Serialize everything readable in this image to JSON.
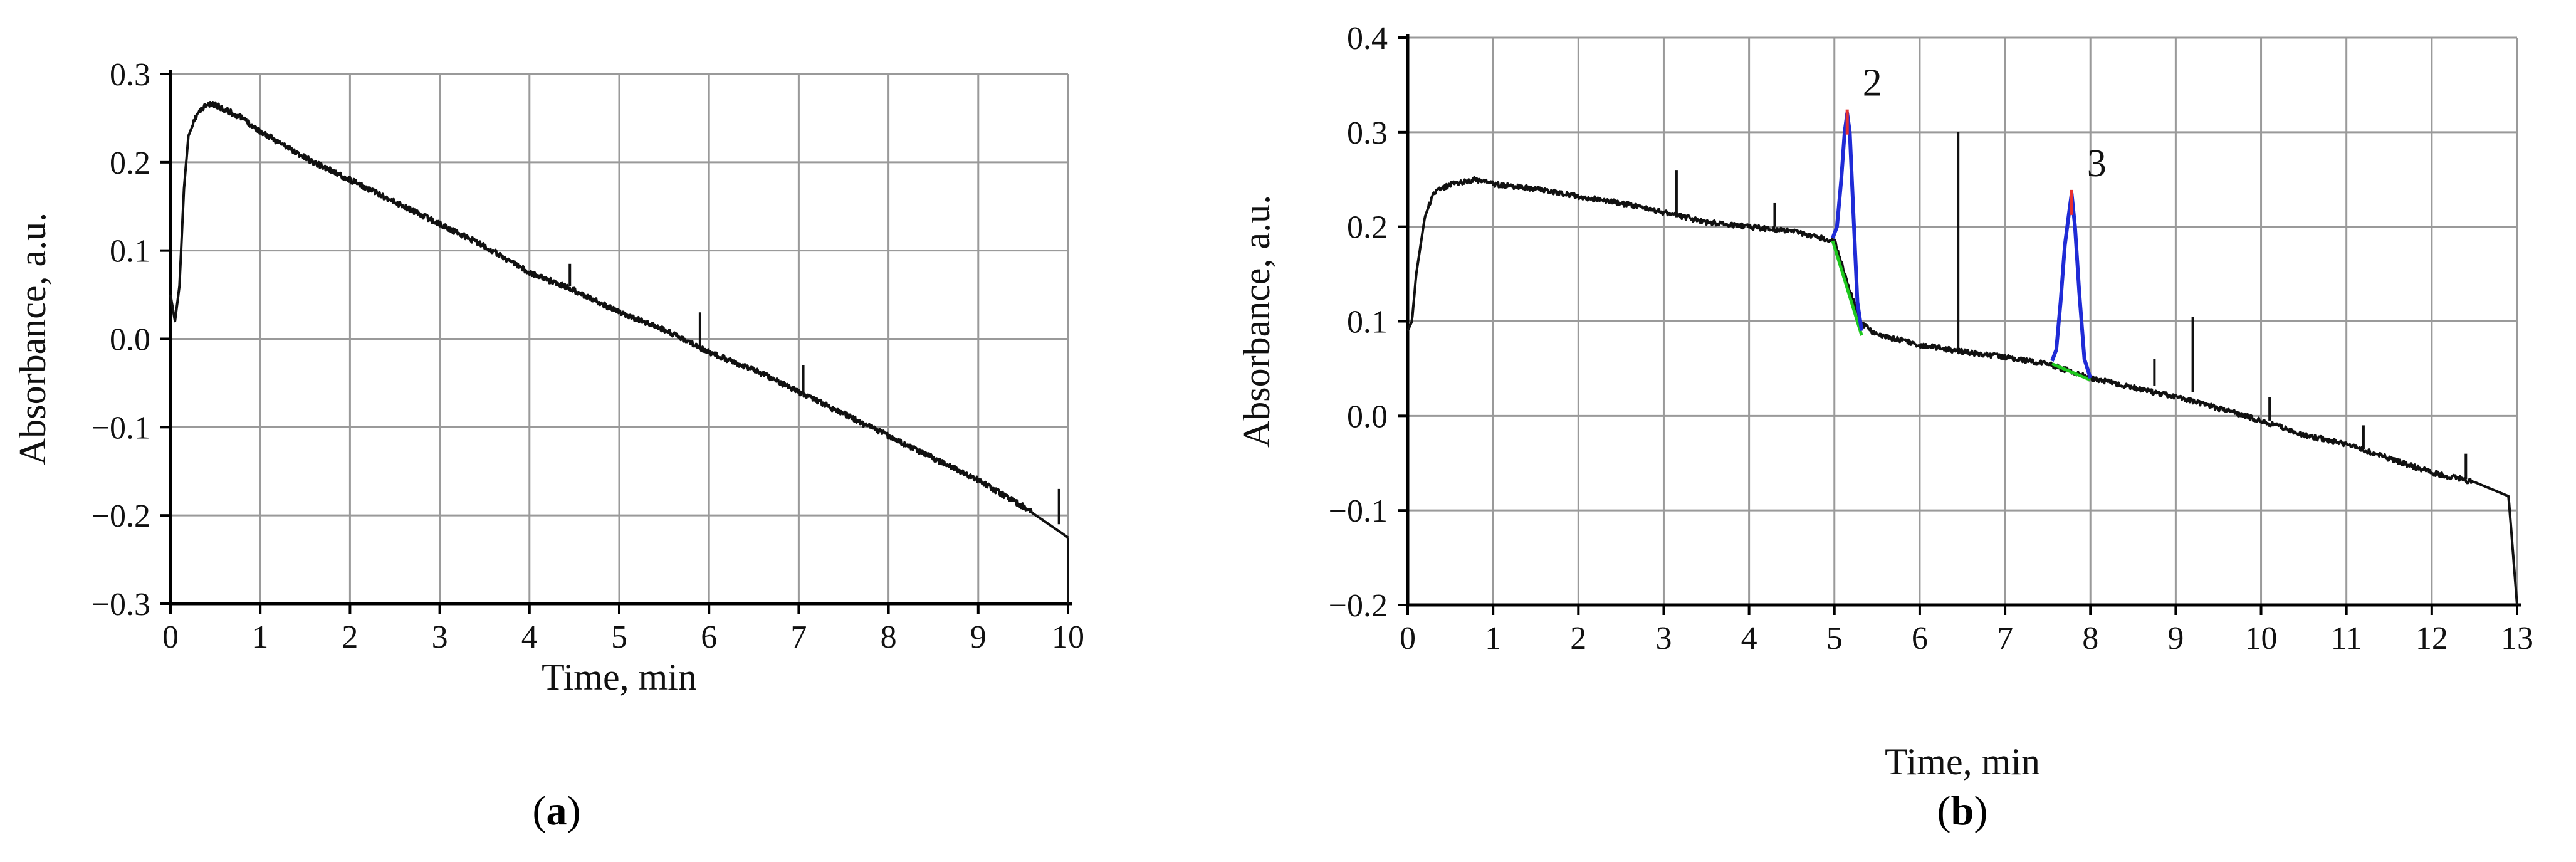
{
  "chart_data": [
    {
      "id": "a",
      "type": "line",
      "panel_label": "a",
      "xlabel": "Time, min",
      "ylabel": "Absorbance, a.u.",
      "xlim": [
        0,
        10
      ],
      "ylim": [
        -0.3,
        0.3
      ],
      "x_ticks": [
        0,
        1,
        2,
        3,
        4,
        5,
        6,
        7,
        8,
        9,
        10
      ],
      "x_tick_labels": [
        "0",
        "1",
        "2",
        "3",
        "4",
        "5",
        "6",
        "7",
        "8",
        "9",
        "10"
      ],
      "y_ticks": [
        0.3,
        0.2,
        0.1,
        0.0,
        -0.1,
        -0.2,
        -0.3
      ],
      "y_tick_labels": [
        "0.3",
        "0.2",
        "0.1",
        "0.0",
        "−0.1",
        "−0.2",
        "−0.3"
      ],
      "grid": true,
      "colors": {
        "trace": "#111111",
        "grid": "#9a9a9a"
      },
      "series": [
        {
          "color": "#111111",
          "x": [
            0.0,
            0.05,
            0.1,
            0.15,
            0.2,
            0.3,
            0.4,
            0.5,
            0.6,
            0.8,
            1.0,
            1.5,
            2.0,
            2.5,
            3.0,
            3.5,
            4.0,
            4.5,
            5.0,
            5.5,
            6.0,
            6.5,
            7.0,
            7.5,
            8.0,
            8.5,
            9.0,
            9.5,
            10.0
          ],
          "y": [
            0.05,
            0.02,
            0.06,
            0.17,
            0.23,
            0.255,
            0.265,
            0.265,
            0.26,
            0.25,
            0.235,
            0.205,
            0.18,
            0.155,
            0.13,
            0.105,
            0.075,
            0.055,
            0.03,
            0.01,
            -0.015,
            -0.035,
            -0.06,
            -0.085,
            -0.11,
            -0.135,
            -0.16,
            -0.19,
            -0.225
          ]
        }
      ],
      "spikes": [
        {
          "x": 4.45,
          "y_base": 0.06,
          "y_top": 0.085
        },
        {
          "x": 5.9,
          "y_base": -0.01,
          "y_top": 0.03
        },
        {
          "x": 7.05,
          "y_base": -0.06,
          "y_top": -0.03
        },
        {
          "x": 9.9,
          "y_base": -0.21,
          "y_top": -0.17
        },
        {
          "x": 10.0,
          "y_base": -0.225,
          "y_top": -0.3
        }
      ]
    },
    {
      "id": "b",
      "type": "line",
      "panel_label": "b",
      "xlabel": "Time, min",
      "ylabel": "Absorbance, a.u.",
      "xlim": [
        0,
        13
      ],
      "ylim": [
        -0.2,
        0.4
      ],
      "x_ticks": [
        0,
        1,
        2,
        3,
        4,
        5,
        6,
        7,
        8,
        9,
        10,
        11,
        12,
        13
      ],
      "x_tick_labels": [
        "0",
        "1",
        "2",
        "3",
        "4",
        "5",
        "6",
        "7",
        "8",
        "9",
        "10",
        "11",
        "12",
        "13"
      ],
      "y_ticks": [
        0.4,
        0.3,
        0.2,
        0.1,
        0.0,
        -0.1,
        -0.2
      ],
      "y_tick_labels": [
        "0.4",
        "0.3",
        "0.2",
        "0.1",
        "0.0",
        "−0.1",
        "−0.2"
      ],
      "grid": true,
      "colors": {
        "trace": "#111111",
        "grid": "#9a9a9a",
        "peak": "#1f2bd6",
        "baseline": "#1ec81e",
        "apex": "#e83030"
      },
      "series": [
        {
          "color": "#111111",
          "x": [
            0.0,
            0.05,
            0.1,
            0.2,
            0.3,
            0.5,
            0.8,
            1.0,
            1.5,
            2.0,
            2.5,
            3.0,
            3.5,
            4.0,
            4.5,
            5.0,
            5.3,
            5.5,
            5.8,
            6.0,
            6.5,
            7.0,
            7.5,
            8.0,
            8.5,
            9.0,
            9.5,
            10.0,
            10.5,
            11.0,
            11.5,
            12.0,
            12.5,
            12.9,
            13.0
          ],
          "y": [
            0.09,
            0.1,
            0.15,
            0.21,
            0.235,
            0.245,
            0.25,
            0.245,
            0.24,
            0.232,
            0.225,
            0.215,
            0.205,
            0.2,
            0.195,
            0.185,
            0.1,
            0.085,
            0.08,
            0.075,
            0.068,
            0.062,
            0.055,
            0.04,
            0.03,
            0.02,
            0.008,
            -0.005,
            -0.02,
            -0.03,
            -0.045,
            -0.06,
            -0.07,
            -0.085,
            -0.2
          ]
        }
      ],
      "spikes": [
        {
          "x": 3.15,
          "y_base": 0.21,
          "y_top": 0.26
        },
        {
          "x": 4.3,
          "y_base": 0.2,
          "y_top": 0.225
        },
        {
          "x": 6.45,
          "y_base": 0.07,
          "y_top": 0.3
        },
        {
          "x": 8.75,
          "y_base": 0.032,
          "y_top": 0.06
        },
        {
          "x": 9.2,
          "y_base": 0.025,
          "y_top": 0.105
        },
        {
          "x": 10.1,
          "y_base": -0.005,
          "y_top": 0.02
        },
        {
          "x": 11.2,
          "y_base": -0.035,
          "y_top": -0.01
        },
        {
          "x": 12.4,
          "y_base": -0.067,
          "y_top": -0.04
        }
      ],
      "peaks": [
        {
          "label": "2",
          "apex_x": 5.15,
          "apex_y": 0.32,
          "x": [
            4.98,
            5.03,
            5.08,
            5.12,
            5.15,
            5.18,
            5.22,
            5.27,
            5.32
          ],
          "y": [
            0.188,
            0.2,
            0.25,
            0.3,
            0.32,
            0.3,
            0.22,
            0.12,
            0.09
          ],
          "baseline_x": [
            4.98,
            5.32
          ],
          "baseline_y": [
            0.185,
            0.085
          ]
        },
        {
          "label": "3",
          "apex_x": 7.78,
          "apex_y": 0.235,
          "x": [
            7.55,
            7.6,
            7.65,
            7.7,
            7.75,
            7.78,
            7.82,
            7.87,
            7.93,
            8.0
          ],
          "y": [
            0.058,
            0.07,
            0.12,
            0.18,
            0.215,
            0.235,
            0.2,
            0.13,
            0.06,
            0.04
          ],
          "baseline_x": [
            7.55,
            8.0
          ],
          "baseline_y": [
            0.055,
            0.038
          ]
        }
      ]
    }
  ]
}
